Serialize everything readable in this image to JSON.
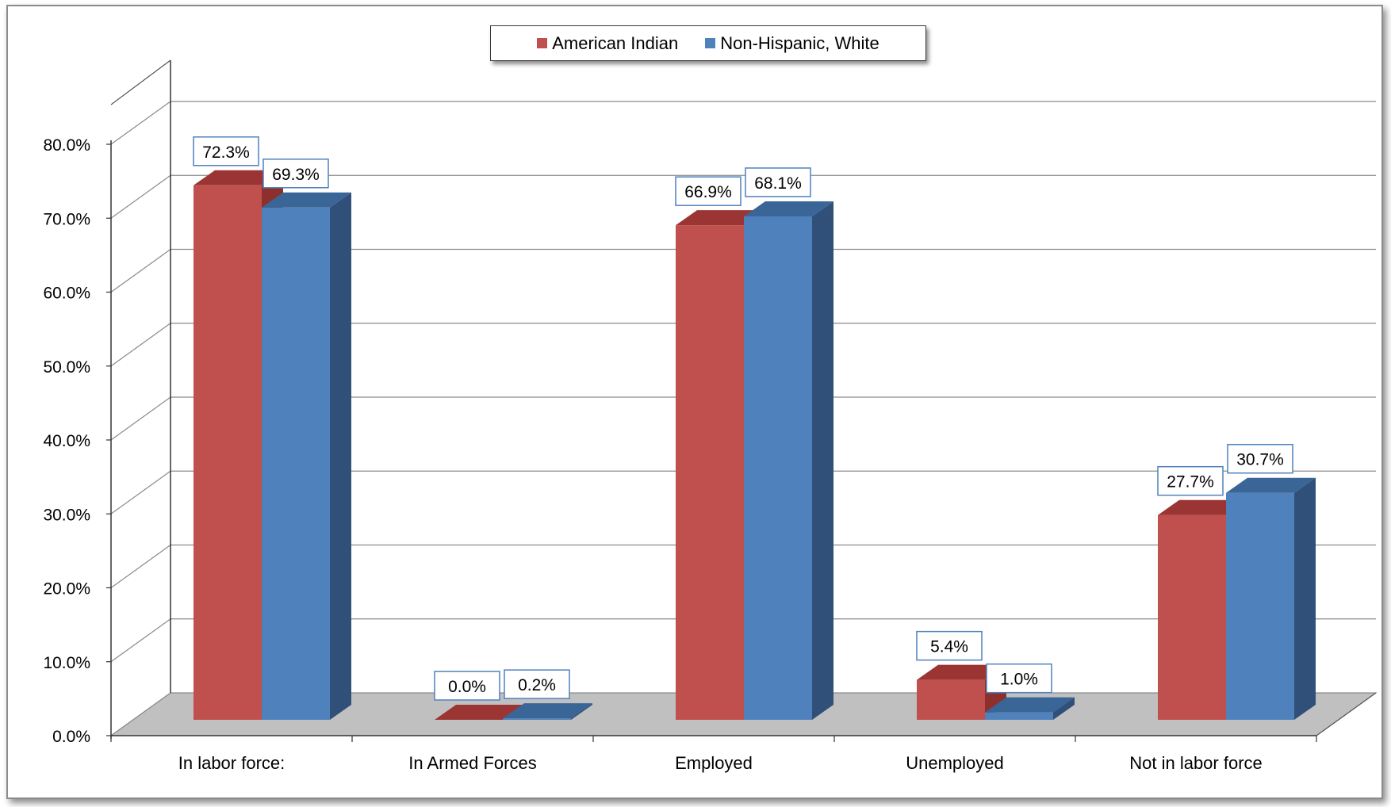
{
  "chart_data": {
    "type": "bar",
    "title": "",
    "xlabel": "",
    "ylabel": "",
    "categories": [
      "In labor force:",
      "In Armed Forces",
      "Employed",
      "Unemployed",
      "Not in labor force"
    ],
    "series": [
      {
        "name": "American Indian",
        "values": [
          72.3,
          0.0,
          66.9,
          5.4,
          27.7
        ],
        "labels": [
          "72.3%",
          "0.0%",
          "66.9%",
          "5.4%",
          "27.7%"
        ]
      },
      {
        "name": "Non-Hispanic, White",
        "values": [
          69.3,
          0.2,
          68.1,
          1.0,
          30.7
        ],
        "labels": [
          "69.3%",
          "0.2%",
          "68.1%",
          "1.0%",
          "30.7%"
        ]
      }
    ],
    "yticks": [
      0,
      10,
      20,
      30,
      40,
      50,
      60,
      70,
      80
    ],
    "ytick_labels": [
      "0.0%",
      "10.0%",
      "20.0%",
      "30.0%",
      "40.0%",
      "50.0%",
      "60.0%",
      "70.0%",
      "80.0%"
    ],
    "ylim": [
      0,
      80
    ],
    "grid": true,
    "legend_position": "top-center",
    "style": "3d-clustered-column"
  },
  "colors": {
    "american_indian": "#c0504d",
    "american_indian_top": "#9b3533",
    "american_indian_side": "#8c2f2d",
    "non_hispanic_white": "#4f81bd",
    "non_hispanic_white_top": "#3a6597",
    "non_hispanic_white_side": "#30507a",
    "floor": "#c0c0c0",
    "label_border": "#4f81bd"
  }
}
